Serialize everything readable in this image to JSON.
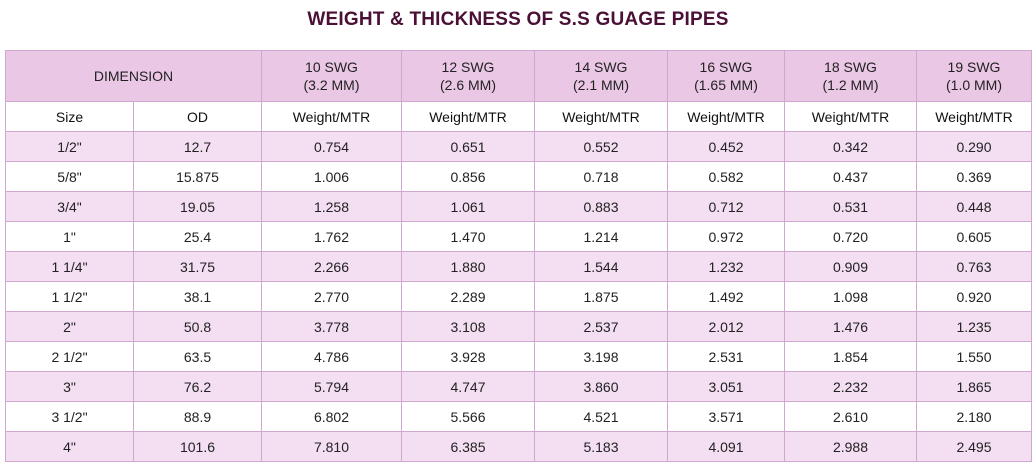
{
  "title": "WEIGHT & THICKNESS OF S.S GUAGE PIPES",
  "header": {
    "dimension": "DIMENSION",
    "gauges": [
      {
        "swg": "10 SWG",
        "mm": "(3.2 MM)"
      },
      {
        "swg": "12 SWG",
        "mm": "(2.6 MM)"
      },
      {
        "swg": "14 SWG",
        "mm": "(2.1 MM)"
      },
      {
        "swg": "16 SWG",
        "mm": "(1.65 MM)"
      },
      {
        "swg": "18 SWG",
        "mm": "(1.2 MM)"
      },
      {
        "swg": "19 SWG",
        "mm": "(1.0 MM)"
      }
    ],
    "sub": [
      "Size",
      "OD",
      "Weight/MTR",
      "Weight/MTR",
      "Weight/MTR",
      "Weight/MTR",
      "Weight/MTR",
      "Weight/MTR"
    ]
  },
  "rows": [
    [
      "1/2\"",
      "12.7",
      "0.754",
      "0.651",
      "0.552",
      "0.452",
      "0.342",
      "0.290"
    ],
    [
      "5/8\"",
      "15.875",
      "1.006",
      "0.856",
      "0.718",
      "0.582",
      "0.437",
      "0.369"
    ],
    [
      "3/4\"",
      "19.05",
      "1.258",
      "1.061",
      "0.883",
      "0.712",
      "0.531",
      "0.448"
    ],
    [
      "1\"",
      "25.4",
      "1.762",
      "1.470",
      "1.214",
      "0.972",
      "0.720",
      "0.605"
    ],
    [
      "1 1/4\"",
      "31.75",
      "2.266",
      "1.880",
      "1.544",
      "1.232",
      "0.909",
      "0.763"
    ],
    [
      "1 1/2\"",
      "38.1",
      "2.770",
      "2.289",
      "1.875",
      "1.492",
      "1.098",
      "0.920"
    ],
    [
      "2\"",
      "50.8",
      "3.778",
      "3.108",
      "2.537",
      "2.012",
      "1.476",
      "1.235"
    ],
    [
      "2 1/2\"",
      "63.5",
      "4.786",
      "3.928",
      "3.198",
      "2.531",
      "1.854",
      "1.550"
    ],
    [
      "3\"",
      "76.2",
      "5.794",
      "4.747",
      "3.860",
      "3.051",
      "2.232",
      "1.865"
    ],
    [
      "3 1/2\"",
      "88.9",
      "6.802",
      "5.566",
      "4.521",
      "3.571",
      "2.610",
      "2.180"
    ],
    [
      "4\"",
      "101.6",
      "7.810",
      "6.385",
      "5.183",
      "4.091",
      "2.988",
      "2.495"
    ]
  ]
}
